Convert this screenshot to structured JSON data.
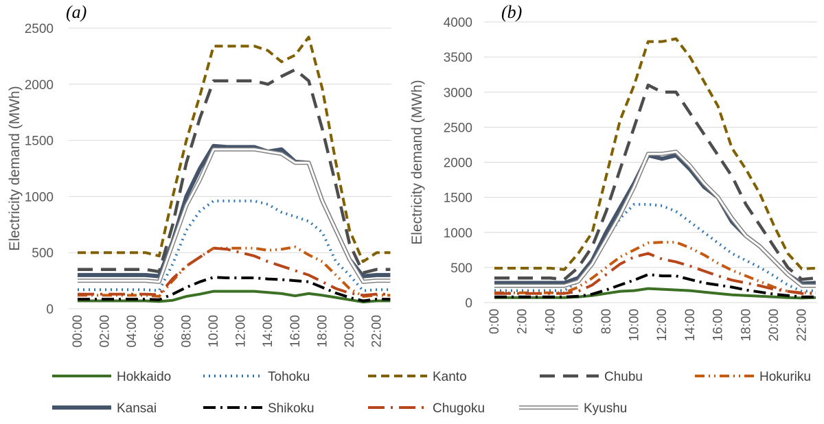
{
  "chart_data": [
    {
      "type": "line",
      "title": "(a)",
      "ylabel": "Electricity demand (MWh)",
      "xlabel": "",
      "ylim": [
        0,
        2500
      ],
      "yticks": [
        0,
        500,
        1000,
        1500,
        2000,
        2500
      ],
      "grid": true,
      "x_tick_labels": [
        "00:00",
        "02:00",
        "04:00",
        "06:00",
        "08:00",
        "10:00",
        "12:00",
        "14:00",
        "16:00",
        "18:00",
        "20:00",
        "22:00"
      ],
      "x": [
        0,
        1,
        2,
        3,
        4,
        5,
        6,
        7,
        8,
        9,
        10,
        11,
        12,
        13,
        14,
        15,
        16,
        17,
        18,
        19,
        20,
        21,
        22,
        23
      ],
      "series": [
        {
          "name": "Hokkaido",
          "values": [
            70,
            70,
            70,
            70,
            70,
            70,
            65,
            75,
            110,
            130,
            155,
            155,
            155,
            155,
            145,
            135,
            115,
            135,
            120,
            100,
            80,
            60,
            70,
            70
          ]
        },
        {
          "name": "Tohoku",
          "values": [
            170,
            170,
            170,
            170,
            170,
            170,
            160,
            400,
            700,
            870,
            960,
            960,
            960,
            960,
            930,
            860,
            820,
            780,
            680,
            420,
            300,
            160,
            170,
            170
          ]
        },
        {
          "name": "Kanto",
          "values": [
            500,
            500,
            500,
            500,
            500,
            500,
            470,
            1000,
            1500,
            1900,
            2340,
            2340,
            2340,
            2340,
            2300,
            2200,
            2260,
            2420,
            1960,
            1300,
            700,
            420,
            500,
            500
          ]
        },
        {
          "name": "Chubu",
          "values": [
            350,
            350,
            350,
            350,
            350,
            350,
            330,
            750,
            1300,
            1700,
            2030,
            2030,
            2030,
            2030,
            2000,
            2070,
            2130,
            2030,
            1600,
            1100,
            580,
            320,
            350,
            350
          ]
        },
        {
          "name": "Hokuriku",
          "values": [
            120,
            120,
            120,
            120,
            120,
            120,
            110,
            250,
            380,
            460,
            540,
            540,
            540,
            540,
            520,
            530,
            550,
            480,
            420,
            300,
            180,
            110,
            120,
            120
          ]
        },
        {
          "name": "Kansai",
          "values": [
            300,
            300,
            300,
            300,
            300,
            300,
            290,
            600,
            1000,
            1250,
            1450,
            1440,
            1440,
            1440,
            1400,
            1420,
            1310,
            1300,
            960,
            700,
            440,
            290,
            300,
            300
          ]
        },
        {
          "name": "Shikoku",
          "values": [
            85,
            85,
            85,
            85,
            85,
            85,
            80,
            130,
            190,
            240,
            280,
            275,
            275,
            275,
            265,
            260,
            250,
            240,
            190,
            140,
            100,
            70,
            85,
            85
          ]
        },
        {
          "name": "Chugoku",
          "values": [
            130,
            130,
            130,
            130,
            130,
            130,
            125,
            270,
            380,
            460,
            540,
            530,
            500,
            470,
            420,
            380,
            340,
            300,
            240,
            180,
            140,
            120,
            130,
            130
          ]
        },
        {
          "name": "Kyushu",
          "values": [
            250,
            250,
            250,
            250,
            250,
            250,
            240,
            580,
            920,
            1150,
            1420,
            1420,
            1420,
            1420,
            1400,
            1380,
            1300,
            1300,
            960,
            700,
            440,
            240,
            250,
            250
          ]
        }
      ]
    },
    {
      "type": "line",
      "title": "(b)",
      "ylabel": "Electricity demand (MWh)",
      "xlabel": "",
      "ylim": [
        0,
        4000
      ],
      "yticks": [
        0,
        500,
        1000,
        1500,
        2000,
        2500,
        3000,
        3500,
        4000
      ],
      "grid": true,
      "x_tick_labels": [
        "0:00",
        "2:00",
        "4:00",
        "6:00",
        "8:00",
        "10:00",
        "12:00",
        "14:00",
        "16:00",
        "18:00",
        "20:00",
        "22:00"
      ],
      "x": [
        0,
        1,
        2,
        3,
        4,
        5,
        6,
        7,
        8,
        9,
        10,
        11,
        12,
        13,
        14,
        15,
        16,
        17,
        18,
        19,
        20,
        21,
        22,
        23
      ],
      "series": [
        {
          "name": "Hokkaido",
          "values": [
            70,
            70,
            70,
            70,
            70,
            70,
            80,
            100,
            130,
            160,
            170,
            200,
            190,
            180,
            170,
            150,
            130,
            110,
            100,
            90,
            80,
            70,
            65,
            70
          ]
        },
        {
          "name": "Tohoku",
          "values": [
            170,
            170,
            170,
            170,
            170,
            170,
            300,
            600,
            900,
            1200,
            1400,
            1400,
            1380,
            1300,
            1150,
            1000,
            850,
            700,
            600,
            500,
            380,
            250,
            160,
            170
          ]
        },
        {
          "name": "Kanto",
          "values": [
            490,
            490,
            490,
            490,
            490,
            470,
            700,
            1000,
            1800,
            2600,
            3100,
            3720,
            3720,
            3760,
            3500,
            3150,
            2800,
            2200,
            1900,
            1550,
            1100,
            700,
            480,
            490
          ]
        },
        {
          "name": "Chubu",
          "values": [
            350,
            350,
            350,
            350,
            350,
            330,
            500,
            800,
            1300,
            1900,
            2500,
            3100,
            3000,
            3000,
            2700,
            2400,
            2100,
            1800,
            1400,
            1100,
            800,
            500,
            330,
            350
          ]
        },
        {
          "name": "Hokuriku",
          "values": [
            140,
            140,
            140,
            140,
            140,
            140,
            220,
            350,
            500,
            650,
            750,
            850,
            860,
            860,
            780,
            680,
            560,
            460,
            380,
            300,
            220,
            160,
            140,
            140
          ]
        },
        {
          "name": "Kansai",
          "values": [
            280,
            280,
            280,
            280,
            280,
            280,
            350,
            600,
            1000,
            1350,
            1700,
            2100,
            2050,
            2100,
            1900,
            1650,
            1500,
            1150,
            950,
            800,
            600,
            400,
            270,
            280
          ]
        },
        {
          "name": "Shikoku",
          "values": [
            80,
            80,
            80,
            80,
            80,
            80,
            90,
            120,
            180,
            250,
            320,
            400,
            380,
            380,
            330,
            280,
            250,
            220,
            180,
            150,
            120,
            100,
            80,
            80
          ]
        },
        {
          "name": "Chugoku",
          "values": [
            130,
            130,
            130,
            130,
            130,
            130,
            160,
            250,
            400,
            550,
            650,
            700,
            620,
            580,
            520,
            450,
            380,
            320,
            280,
            240,
            190,
            160,
            130,
            130
          ]
        },
        {
          "name": "Kyushu",
          "values": [
            240,
            240,
            240,
            240,
            240,
            240,
            300,
            550,
            900,
            1250,
            1650,
            2120,
            2120,
            2150,
            1950,
            1700,
            1500,
            1200,
            950,
            800,
            600,
            400,
            240,
            240
          ]
        }
      ]
    }
  ],
  "series_styles": [
    {
      "color": "#3b7025",
      "dash": "none",
      "width": 4
    },
    {
      "color": "#2e75b6",
      "dash": "2 6",
      "width": 4
    },
    {
      "color": "#806000",
      "dash": "12 7",
      "width": 4
    },
    {
      "color": "#4d4d4d",
      "dash": "22 12",
      "width": 4.5
    },
    {
      "color": "#c55a11",
      "dash": "14 6 2 6 2 6",
      "width": 4
    },
    {
      "color": "#44546a",
      "dash": "none",
      "width": 6
    },
    {
      "color": "#000000",
      "dash": "18 7 3 7",
      "width": 4
    },
    {
      "color": "#b7471a",
      "dash": "24 9 3 9",
      "width": 4
    },
    {
      "color": "#808080",
      "dash": "none",
      "width": 6,
      "double": true
    }
  ],
  "legend": {
    "placement": "bottom"
  }
}
